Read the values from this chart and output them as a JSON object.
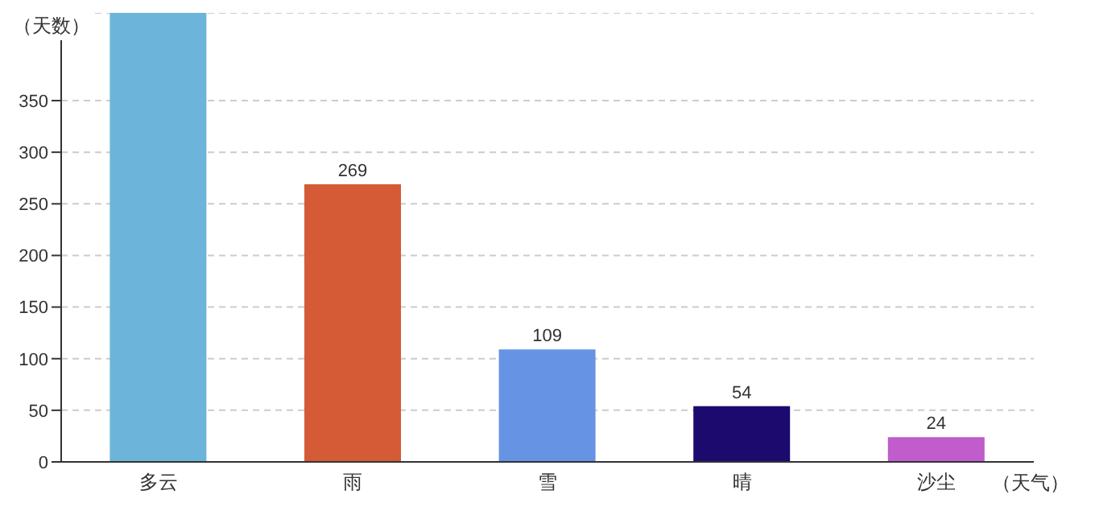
{
  "chart_data": {
    "type": "bar",
    "ylabel": "（天数）",
    "xlabel": "（天气）",
    "categories": [
      "多云",
      "雨",
      "雪",
      "晴",
      "沙尘"
    ],
    "values": [
      435,
      269,
      109,
      54,
      24
    ],
    "colors": [
      "#6cb4da",
      "#d45b35",
      "#6693e4",
      "#1c0a6e",
      "#c05ccc"
    ],
    "value_labels": [
      null,
      "269",
      "109",
      "54",
      "24"
    ],
    "ylim": [
      0,
      435
    ],
    "yticks": [
      0,
      50,
      100,
      150,
      200,
      250,
      300,
      350
    ],
    "grid": "y",
    "legend": false
  }
}
